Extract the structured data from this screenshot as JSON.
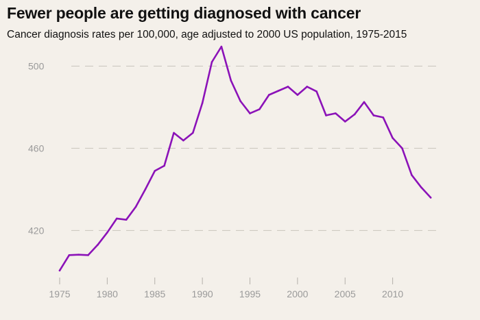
{
  "chart_data": {
    "type": "line",
    "title": "Fewer people are getting diagnosed with cancer",
    "subtitle": "Cancer diagnosis rates per 100,000, age adjusted to 2000 US population, 1975-2015",
    "xlabel": "",
    "ylabel": "",
    "xlim": [
      1975,
      2015
    ],
    "ylim": [
      400,
      510
    ],
    "x_ticks": [
      1975,
      1980,
      1985,
      1990,
      1995,
      2000,
      2005,
      2010
    ],
    "y_ticks": [
      420,
      460,
      500
    ],
    "grid": "horizontal dashed",
    "line_color": "#8b12b8",
    "series": [
      {
        "x": [
          1975,
          1976,
          1977,
          1978,
          1979,
          1980,
          1981,
          1982,
          1983,
          1984,
          1985,
          1986,
          1987,
          1988,
          1989,
          1990,
          1991,
          1992,
          1993,
          1994,
          1995,
          1996,
          1997,
          1998,
          1999,
          2000,
          2001,
          2002,
          2003,
          2004,
          2005,
          2006,
          2007,
          2008,
          2009,
          2010,
          2011,
          2012,
          2013,
          2014
        ],
        "values": [
          400.5,
          408,
          408.2,
          408,
          413,
          419,
          425.8,
          425.2,
          431.5,
          440,
          449,
          451.5,
          467.5,
          463.8,
          467.5,
          482,
          502,
          509.5,
          493,
          483,
          477,
          479,
          486,
          488,
          490,
          486,
          490,
          487.7,
          476,
          477,
          473,
          476.5,
          482.5,
          476,
          475,
          465,
          460,
          447,
          441,
          436
        ]
      }
    ]
  }
}
